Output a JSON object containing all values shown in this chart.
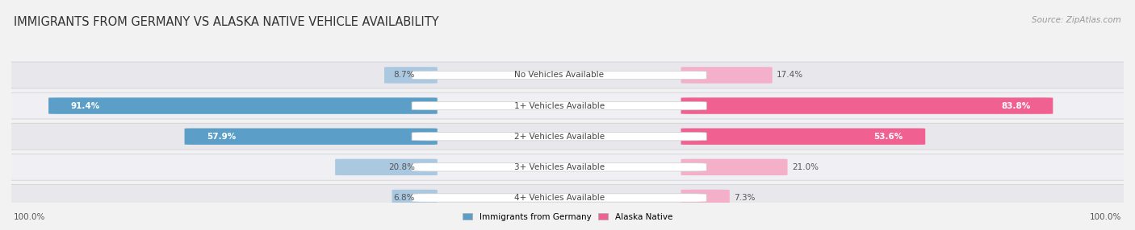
{
  "title": "IMMIGRANTS FROM GERMANY VS ALASKA NATIVE VEHICLE AVAILABILITY",
  "source": "Source: ZipAtlas.com",
  "categories": [
    "No Vehicles Available",
    "1+ Vehicles Available",
    "2+ Vehicles Available",
    "3+ Vehicles Available",
    "4+ Vehicles Available"
  ],
  "germany_values": [
    8.7,
    91.4,
    57.9,
    20.8,
    6.8
  ],
  "alaska_values": [
    17.4,
    83.8,
    53.6,
    21.0,
    7.3
  ],
  "germany_color_light": "#aac8e0",
  "germany_color_dark": "#5b9fc8",
  "alaska_color_light": "#f4b0c8",
  "alaska_color_dark": "#f06090",
  "background_color": "#f2f2f2",
  "row_color_odd": "#e8e8ec",
  "row_color_even": "#f0f0f4",
  "legend_germany": "Immigrants from Germany",
  "legend_alaska": "Alaska Native",
  "max_value": 100.0,
  "title_fontsize": 10.5,
  "label_fontsize": 7.5,
  "category_fontsize": 7.5,
  "footer_fontsize": 7.5,
  "source_fontsize": 7.5
}
